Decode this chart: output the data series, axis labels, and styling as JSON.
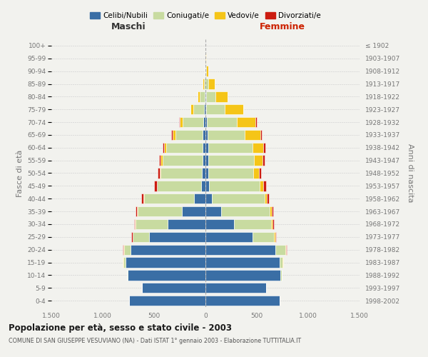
{
  "age_groups": [
    "0-4",
    "5-9",
    "10-14",
    "15-19",
    "20-24",
    "25-29",
    "30-34",
    "35-39",
    "40-44",
    "45-49",
    "50-54",
    "55-59",
    "60-64",
    "65-69",
    "70-74",
    "75-79",
    "80-84",
    "85-89",
    "90-94",
    "95-99",
    "100+"
  ],
  "birth_years": [
    "1998-2002",
    "1993-1997",
    "1988-1992",
    "1983-1987",
    "1978-1982",
    "1973-1977",
    "1968-1972",
    "1963-1967",
    "1958-1962",
    "1953-1957",
    "1948-1952",
    "1943-1947",
    "1938-1942",
    "1933-1937",
    "1928-1932",
    "1923-1927",
    "1918-1922",
    "1913-1917",
    "1908-1912",
    "1903-1907",
    "≤ 1902"
  ],
  "males": {
    "celibe": [
      740,
      620,
      760,
      780,
      730,
      550,
      370,
      230,
      110,
      40,
      35,
      30,
      30,
      25,
      20,
      15,
      8,
      3,
      0,
      0,
      0
    ],
    "coniugato": [
      0,
      0,
      5,
      20,
      65,
      155,
      310,
      430,
      490,
      430,
      400,
      390,
      350,
      270,
      200,
      100,
      50,
      12,
      5,
      2,
      0
    ],
    "vedovo": [
      0,
      0,
      0,
      5,
      5,
      5,
      5,
      5,
      5,
      5,
      10,
      15,
      20,
      25,
      30,
      30,
      20,
      10,
      3,
      0,
      0
    ],
    "divorziato": [
      0,
      0,
      0,
      3,
      5,
      10,
      12,
      15,
      20,
      25,
      20,
      18,
      15,
      10,
      5,
      2,
      0,
      0,
      0,
      0,
      0
    ]
  },
  "females": {
    "nubile": [
      720,
      590,
      730,
      720,
      680,
      460,
      280,
      155,
      65,
      35,
      25,
      25,
      25,
      20,
      15,
      10,
      5,
      3,
      0,
      0,
      0
    ],
    "coniugata": [
      0,
      0,
      10,
      30,
      100,
      210,
      360,
      470,
      510,
      490,
      440,
      450,
      430,
      360,
      290,
      180,
      90,
      25,
      5,
      3,
      0
    ],
    "vedova": [
      0,
      0,
      0,
      5,
      5,
      10,
      15,
      20,
      25,
      40,
      55,
      80,
      110,
      155,
      180,
      175,
      120,
      65,
      25,
      5,
      0
    ],
    "divorziata": [
      0,
      0,
      0,
      3,
      5,
      10,
      15,
      15,
      18,
      25,
      20,
      20,
      18,
      15,
      12,
      5,
      3,
      0,
      0,
      0,
      0
    ]
  },
  "colors": {
    "celibe_nubile": "#3a6ea5",
    "coniugato_a": "#c8dba0",
    "vedovo_a": "#f5c518",
    "divorziato_a": "#cc1c10"
  },
  "xlim": 1500,
  "title": "Popolazione per età, sesso e stato civile - 2003",
  "subtitle": "COMUNE DI SAN GIUSEPPE VESUVIANO (NA) - Dati ISTAT 1° gennaio 2003 - Elaborazione TUTTITALIA.IT",
  "ylabel_left": "Fasce di età",
  "ylabel_right": "Anni di nascita",
  "xlabel_maschi": "Maschi",
  "xlabel_femmine": "Femmine",
  "legend_labels": [
    "Celibi/Nubili",
    "Coniugati/e",
    "Vedovi/e",
    "Divorziati/e"
  ],
  "background_color": "#f2f2ee",
  "grid_color": "#cccccc",
  "tick_color": "#777777",
  "maschi_color": "#333333",
  "femmine_color": "#cc2200"
}
